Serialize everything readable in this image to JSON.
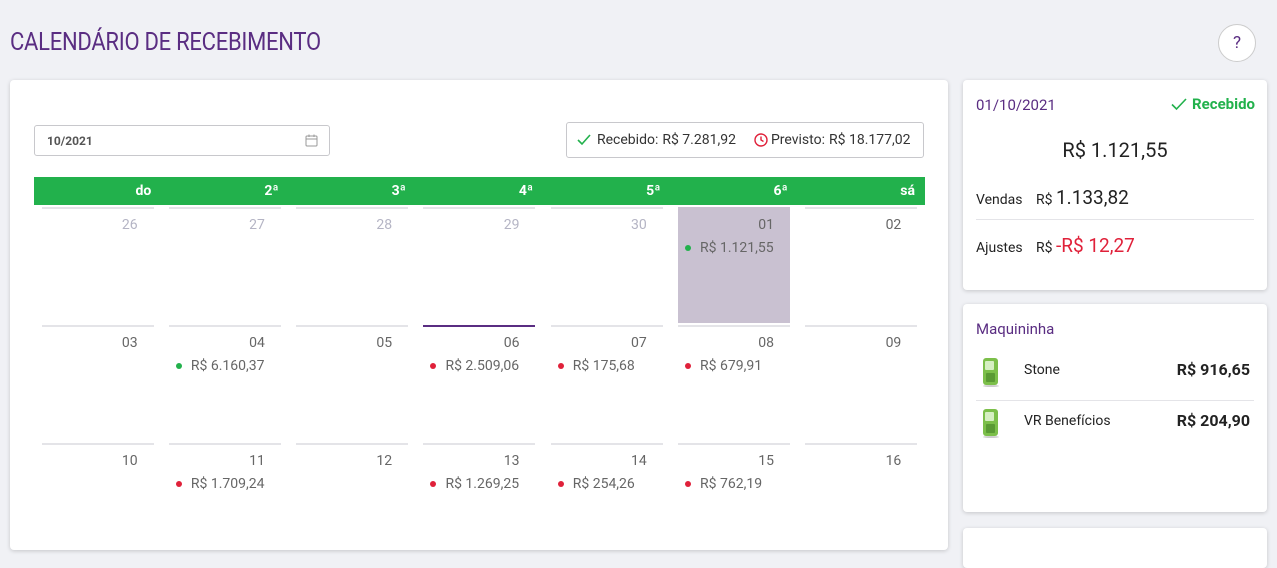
{
  "header": {
    "title": "CALENDÁRIO DE RECEBIMENTO",
    "help": "?"
  },
  "calendar": {
    "month": "10/2021",
    "summary": {
      "received_label": "Recebido:",
      "received": "R$ 7.281,92",
      "forecast_label": "Previsto:",
      "forecast": "R$ 18.177,02"
    },
    "weekdays": [
      "do",
      "2ª",
      "3ª",
      "4ª",
      "5ª",
      "6ª",
      "sá"
    ],
    "weeks": [
      [
        {
          "day": "26",
          "muted": true
        },
        {
          "day": "27",
          "muted": true
        },
        {
          "day": "28",
          "muted": true
        },
        {
          "day": "29",
          "muted": true
        },
        {
          "day": "30",
          "muted": true
        },
        {
          "day": "01",
          "selected": true,
          "amount": "R$ 1.121,55",
          "dot_color": "#22b14c"
        },
        {
          "day": "02"
        }
      ],
      [
        {
          "day": "03"
        },
        {
          "day": "04",
          "amount": "R$ 6.160,37",
          "dot_color": "#22b14c"
        },
        {
          "day": "05"
        },
        {
          "day": "06",
          "today": true,
          "amount": "R$ 2.509,06",
          "dot_color": "#e0213a"
        },
        {
          "day": "07",
          "amount": "R$ 175,68",
          "dot_color": "#e0213a"
        },
        {
          "day": "08",
          "amount": "R$ 679,91",
          "dot_color": "#e0213a"
        },
        {
          "day": "09"
        }
      ],
      [
        {
          "day": "10"
        },
        {
          "day": "11",
          "amount": "R$ 1.709,24",
          "dot_color": "#e0213a"
        },
        {
          "day": "12"
        },
        {
          "day": "13",
          "amount": "R$ 1.269,25",
          "dot_color": "#e0213a"
        },
        {
          "day": "14",
          "amount": "R$ 254,26",
          "dot_color": "#e0213a"
        },
        {
          "day": "15",
          "amount": "R$ 762,19",
          "dot_color": "#e0213a"
        },
        {
          "day": "16"
        }
      ]
    ]
  },
  "detail": {
    "date": "01/10/2021",
    "status": "Recebido",
    "total": "R$ 1.121,55",
    "rows": [
      {
        "label": "Vendas",
        "currency": "R$",
        "value": "1.133,82"
      },
      {
        "label": "Ajustes",
        "currency": "R$",
        "value": "-R$ 12,27",
        "negative": true
      }
    ]
  },
  "machines": {
    "title": "Maquininha",
    "items": [
      {
        "name": "Stone",
        "value": "R$ 916,65"
      },
      {
        "name": "VR Benefícios",
        "value": "R$ 204,90"
      }
    ]
  }
}
